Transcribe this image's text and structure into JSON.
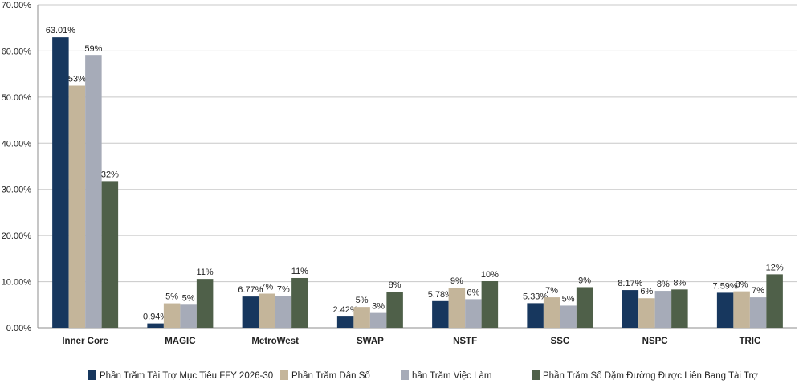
{
  "chart_data": {
    "type": "bar",
    "categories": [
      "Inner Core",
      "MAGIC",
      "MetroWest",
      "SWAP",
      "NSTF",
      "SSC",
      "NSPC",
      "TRIC"
    ],
    "ylim": [
      0,
      70
    ],
    "ytick_step": 10,
    "ytick_labels": [
      "0.00%",
      "10.00%",
      "20.00%",
      "30.00%",
      "40.00%",
      "50.00%",
      "60.00%",
      "70.00%"
    ],
    "grid": true,
    "legend_position": "bottom",
    "series": [
      {
        "name": "Phần Trăm Tài Trợ Mục Tiêu FFY 2026-30",
        "color": "#17375e",
        "values": [
          63.01,
          0.94,
          6.77,
          2.42,
          5.78,
          5.33,
          8.17,
          7.59
        ],
        "labels": [
          "63.01%",
          "0.94%",
          "6.77%",
          "2.42%",
          "5.78%",
          "5.33%",
          "8.17%",
          "7.59%"
        ]
      },
      {
        "name": "Phần Trăm Dân Số",
        "color": "#c4b59a",
        "values": [
          52.5,
          5.3,
          7.4,
          4.5,
          8.7,
          6.6,
          6.4,
          7.9
        ],
        "labels": [
          "53%",
          "5%",
          "7%",
          "5%",
          "9%",
          "7%",
          "6%",
          "8%"
        ]
      },
      {
        "name": "hần Trăm Việc Làm",
        "color": "#a6abb8",
        "values": [
          59.0,
          5.0,
          6.9,
          3.2,
          6.2,
          4.8,
          8.0,
          6.6
        ],
        "labels": [
          "59%",
          "5%",
          "7%",
          "3%",
          "6%",
          "5%",
          "8%",
          "7%"
        ]
      },
      {
        "name": "Phần Trăm Số Dặm Đường Được Liên Bang Tài Trợ",
        "color": "#4f6049",
        "values": [
          31.8,
          10.6,
          10.8,
          7.8,
          10.1,
          8.8,
          8.3,
          11.6
        ],
        "labels": [
          "32%",
          "11%",
          "11%",
          "8%",
          "10%",
          "9%",
          "8%",
          "12%"
        ]
      }
    ]
  }
}
